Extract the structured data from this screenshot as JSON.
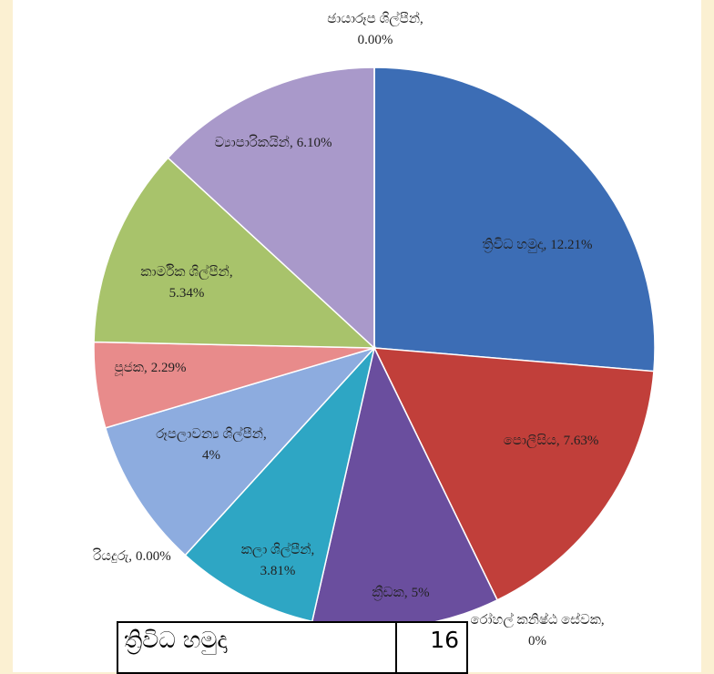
{
  "chart_data": {
    "type": "pie",
    "categories": [
      "ත්‍රිවිධ හමුදා,",
      "පොලීසිය,",
      "රෝහල් කනිෂ්ඨ සේවක,",
      "ක්‍රීඩක,",
      "කලා ශිල්පීන්,",
      "රියදුරු,",
      "රූපලාවන්‍ය ශිල්පීන්,",
      "පූජක,",
      "කාර්මික ශිල්පීන්,",
      "ව්‍යාපාරිකයින්,",
      "ඡායාරූප ශිල්පීන්,"
    ],
    "values": [
      12.21,
      7.63,
      0,
      5,
      3.81,
      0,
      4,
      2.29,
      5.34,
      6.1,
      0
    ],
    "value_labels": [
      "12.21%",
      "7.63%",
      "0%",
      "5%",
      "3.81%",
      "0.00%",
      "4%",
      "2.29%",
      "5.34%",
      "6.10%",
      "0.00%"
    ],
    "colors": [
      "#3c6db5",
      "#c13f3a",
      "#999999",
      "#6a4e9e",
      "#2ea6c4",
      "#999999",
      "#8dacdf",
      "#e88b8b",
      "#a8c36b",
      "#a999ca",
      "#999999"
    ]
  },
  "table": {
    "rows": [
      [
        "ත්‍රිවිධ හමුදා",
        "16"
      ]
    ]
  }
}
